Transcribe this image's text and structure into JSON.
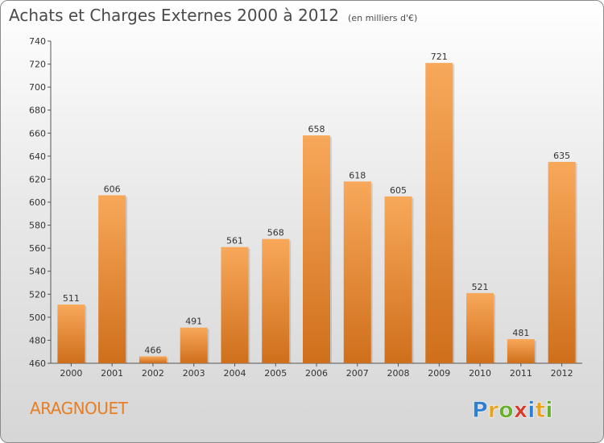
{
  "header": {
    "title": "Achats et Charges Externes 2000 à 2012",
    "unit_note": "(en milliers d'€)"
  },
  "footer": {
    "commune": "ARAGNOUET",
    "brand": "Proxiti"
  },
  "colors": {
    "bar_light": "#f8a85a",
    "bar_dark": "#cf6f1b",
    "commune": "#e87e24"
  },
  "chart_data": {
    "type": "bar",
    "title": "Achats et Charges Externes 2000 à 2012",
    "subtitle": "(en milliers d'€)",
    "xlabel": "",
    "ylabel": "",
    "categories": [
      "2000",
      "2001",
      "2002",
      "2003",
      "2004",
      "2005",
      "2006",
      "2007",
      "2008",
      "2009",
      "2010",
      "2011",
      "2012"
    ],
    "values": [
      511,
      606,
      466,
      491,
      561,
      568,
      658,
      618,
      605,
      721,
      521,
      481,
      635
    ],
    "ylim": [
      460,
      740
    ],
    "yticks": [
      460,
      480,
      500,
      520,
      540,
      560,
      580,
      600,
      620,
      640,
      660,
      680,
      700,
      720,
      740
    ],
    "grid": false,
    "legend": "none"
  }
}
